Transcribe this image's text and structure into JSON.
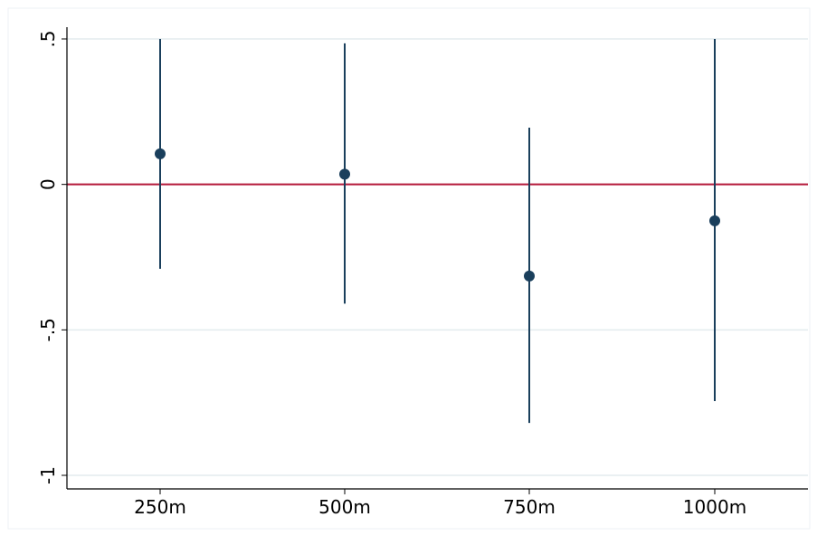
{
  "chart_data": {
    "type": "scatter",
    "subtype": "coefficient-plot-with-confidence-intervals",
    "title": "",
    "xlabel": "",
    "ylabel": "",
    "categories": [
      "250m",
      "500m",
      "750m",
      "1000m"
    ],
    "estimates": [
      0.105,
      0.035,
      -0.315,
      -0.125
    ],
    "ci_low": [
      -0.29,
      -0.41,
      -0.82,
      -0.745
    ],
    "ci_high": [
      0.5,
      0.485,
      0.195,
      0.5
    ],
    "reference_line": 0,
    "ylim": [
      -1.05,
      0.535
    ],
    "yticks": [
      {
        "value": 0.5,
        "label": ".5"
      },
      {
        "value": 0,
        "label": "0"
      },
      {
        "value": -0.5,
        "label": "-.5"
      },
      {
        "value": -1,
        "label": "-1"
      }
    ],
    "grid": "horizontal",
    "legend": "none",
    "colors": {
      "marker": "#1a3f5c",
      "ci_line": "#1a3f5c",
      "reference_line": "#b5183a",
      "grid": "#e3ecee",
      "axis": "#000000",
      "frame": "#eef2f4"
    }
  }
}
